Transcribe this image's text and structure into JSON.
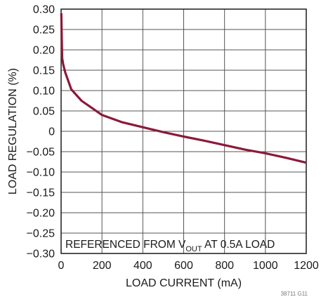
{
  "chart_data": {
    "type": "line",
    "xlabel": "LOAD CURRENT (mA)",
    "ylabel": "LOAD REGULATION (%)",
    "xlim": [
      0,
      1200
    ],
    "ylim": [
      -0.3,
      0.3
    ],
    "grid": true,
    "x_ticks": [
      0,
      200,
      400,
      600,
      800,
      1000,
      1200
    ],
    "y_ticks": [
      0.3,
      0.25,
      0.2,
      0.15,
      0.1,
      0.05,
      0,
      -0.05,
      -0.1,
      -0.15,
      -0.2,
      -0.25,
      -0.3
    ],
    "x_tick_labels": [
      "0",
      "200",
      "400",
      "600",
      "800",
      "1000",
      "1200"
    ],
    "y_tick_labels": [
      "0.30",
      "0.25",
      "0.20",
      "0.15",
      "0.10",
      "0.05",
      "0",
      "−0.05",
      "−0.10",
      "−0.15",
      "−0.20",
      "−0.25",
      "−0.30"
    ],
    "annotation": {
      "prefix": "REFERENCED FROM V",
      "subscript": "OUT",
      "suffix": " AT 0.5A LOAD"
    },
    "figure_id": "38711 G11",
    "series": [
      {
        "color": "#8b1a3a",
        "x": [
          1,
          3,
          5,
          10,
          20,
          50,
          100,
          200,
          300,
          400,
          500,
          600,
          700,
          800,
          900,
          1000,
          1100,
          1200
        ],
        "y": [
          0.29,
          0.23,
          0.18,
          0.165,
          0.145,
          0.103,
          0.075,
          0.04,
          0.022,
          0.01,
          -0.002,
          -0.013,
          -0.023,
          -0.034,
          -0.045,
          -0.054,
          -0.065,
          -0.077
        ]
      }
    ]
  }
}
